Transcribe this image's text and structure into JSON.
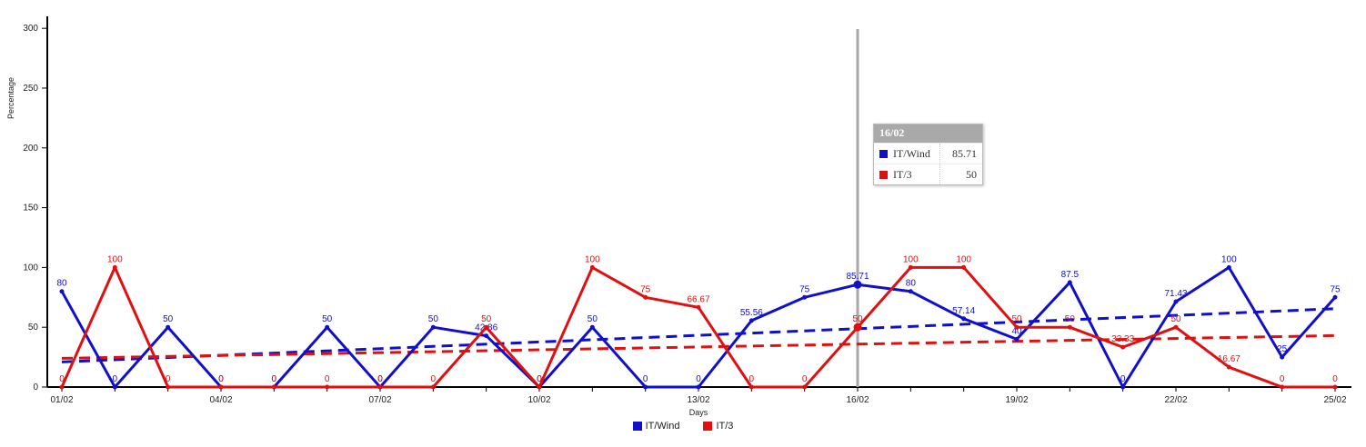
{
  "chart_data": {
    "type": "line",
    "xlabel": "Days",
    "ylabel": "Percentage",
    "ylim": [
      0,
      310
    ],
    "yticks": [
      0,
      50,
      100,
      150,
      200,
      250,
      300
    ],
    "x": [
      "01/02",
      "02/02",
      "03/02",
      "04/02",
      "05/02",
      "06/02",
      "07/02",
      "08/02",
      "09/02",
      "10/02",
      "11/02",
      "12/02",
      "13/02",
      "14/02",
      "15/02",
      "16/02",
      "17/02",
      "18/02",
      "19/02",
      "20/02",
      "21/02",
      "22/02",
      "23/02",
      "24/02",
      "25/02"
    ],
    "xtick_labels": [
      "01/02",
      "04/02",
      "07/02",
      "10/02",
      "13/02",
      "16/02",
      "19/02",
      "22/02",
      "25/02"
    ],
    "series": [
      {
        "name": "IT/Wind",
        "color": "#1010cc",
        "values": [
          80,
          0,
          50,
          0,
          0,
          50,
          0,
          50,
          42.86,
          0,
          50,
          0,
          0,
          55.56,
          75,
          85.71,
          80,
          57.14,
          40,
          87.5,
          0,
          71.43,
          100,
          25,
          75
        ],
        "labels": [
          "80",
          "0",
          "50",
          "0",
          "0",
          "50",
          "0",
          "50",
          "42.86",
          "0",
          "50",
          "0",
          "0",
          "55.56",
          "75",
          "85.71",
          "80",
          "57.14",
          "40",
          "87.5",
          "0",
          "71.43",
          "100",
          "25",
          "75"
        ],
        "trend": [
          21,
          65.5
        ]
      },
      {
        "name": "IT/3",
        "color": "#e01010",
        "values": [
          0,
          100,
          0,
          0,
          0,
          0,
          0,
          0,
          50,
          0,
          100,
          75,
          66.67,
          0,
          0,
          50,
          100,
          100,
          50,
          50,
          33.33,
          50,
          16.67,
          0,
          0
        ],
        "labels": [
          "0",
          "100",
          "0",
          "0",
          "0",
          "0",
          "0",
          "0",
          "50",
          "0",
          "100",
          "75",
          "66.67",
          "0",
          "0",
          "50",
          "100",
          "100",
          "50",
          "50",
          "33.33",
          "50",
          "16.67",
          "0",
          "0"
        ],
        "trend": [
          24,
          43
        ]
      }
    ],
    "highlight_index": 15,
    "grid": false,
    "legend": "bottom-center"
  },
  "tooltip": {
    "date": "16/02",
    "rows": [
      {
        "name": "IT/Wind",
        "value": "85.71",
        "color": "#1010cc"
      },
      {
        "name": "IT/3",
        "value": "50",
        "color": "#e01010"
      }
    ]
  }
}
